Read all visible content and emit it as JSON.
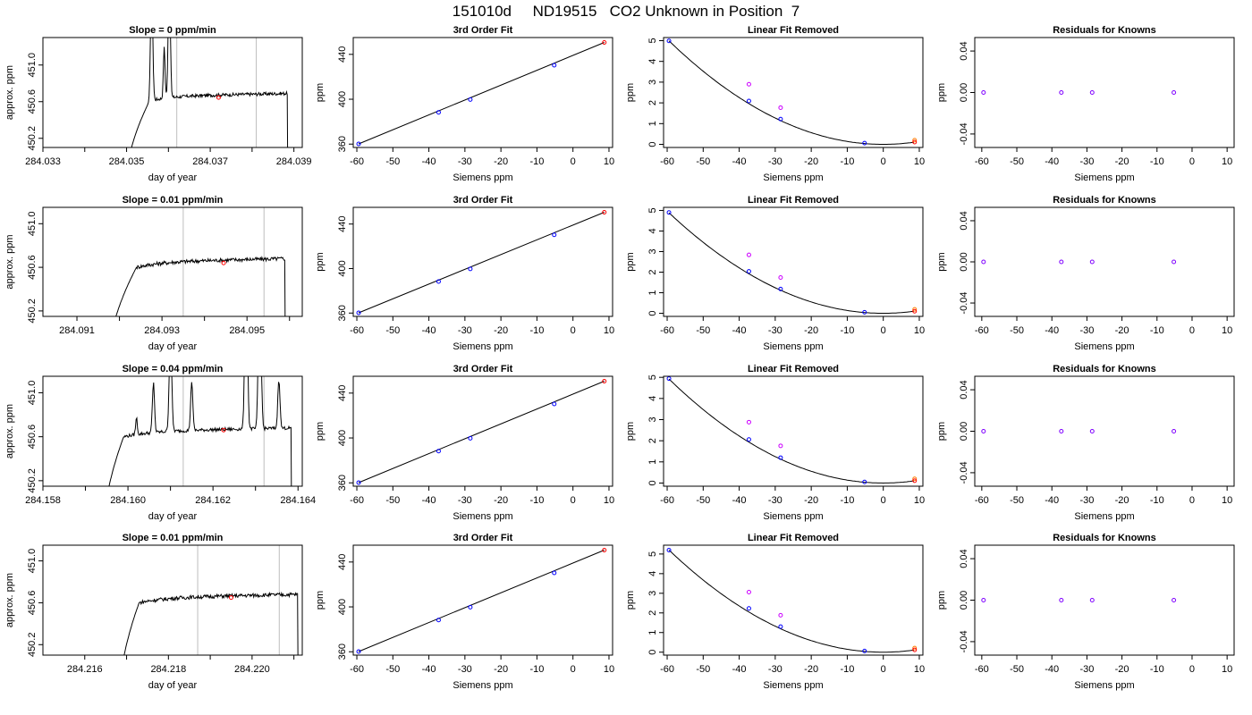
{
  "page": {
    "title": "151010d     ND19515   CO2 Unknown in Position  7"
  },
  "colors": {
    "line": "#000000",
    "frame": "#000000",
    "vline": "#bebebe",
    "known_point": "#0000ff",
    "unknown_point": "#ff0000",
    "unknown_point_alt": "#ff7f00",
    "raw_point": "#cc00ff",
    "residual_point": "#7f00ff"
  },
  "chart_data": [
    {
      "type": "line",
      "row": 1,
      "panel": "timeseries",
      "title": "Slope =  0  ppm/min",
      "xlabel": "day of year",
      "ylabel": "approx. ppm",
      "xlim": [
        284.033,
        284.0392
      ],
      "ylim": [
        450.1,
        451.3
      ],
      "xticks": [
        "284.033",
        "284.035",
        "284.037",
        "284.039"
      ],
      "xtick_values": [
        284.033,
        284.035,
        284.037,
        284.039
      ],
      "xminor": [
        284.034,
        284.036,
        284.038
      ],
      "yticks": [
        "450.2",
        "450.6",
        "451.0"
      ],
      "ytick_values": [
        450.2,
        450.6,
        451.0
      ],
      "vlines": [
        284.0362,
        284.0381
      ],
      "marker": {
        "x": 284.0372,
        "y": 450.645
      },
      "profile": {
        "start": 284.03495,
        "rise_end": 284.03555,
        "end": 284.03885,
        "level": 450.66,
        "noise": 0.018,
        "spikes": [
          {
            "x": 284.0356,
            "height": 1.4,
            "width": 5e-05
          },
          {
            "x": 284.0359,
            "height": 0.55,
            "width": 4e-05
          },
          {
            "x": 284.03602,
            "height": 1.4,
            "width": 5e-05
          }
        ]
      }
    },
    {
      "type": "line",
      "row": 2,
      "panel": "timeseries",
      "title": "Slope =  0.01  ppm/min",
      "xlabel": "day of year",
      "ylabel": "approx. ppm",
      "xlim": [
        284.0902,
        284.0963
      ],
      "ylim": [
        450.15,
        451.15
      ],
      "xticks": [
        "284.091",
        "284.093",
        "284.095"
      ],
      "xtick_values": [
        284.091,
        284.093,
        284.095
      ],
      "xminor": [
        284.092,
        284.094,
        284.096
      ],
      "yticks": [
        "450.2",
        "450.6",
        "451.0"
      ],
      "ytick_values": [
        450.2,
        450.6,
        451.0
      ],
      "vlines": [
        284.0935,
        284.0954
      ],
      "marker": {
        "x": 284.09445,
        "y": 450.64
      },
      "profile": {
        "start": 284.0917,
        "rise_end": 284.0924,
        "end": 284.0959,
        "level": 450.65,
        "noise": 0.018,
        "spikes": []
      }
    },
    {
      "type": "line",
      "row": 3,
      "panel": "timeseries",
      "title": "Slope =  0.04  ppm/min",
      "xlabel": "day of year",
      "ylabel": "approx. ppm",
      "xlim": [
        284.158,
        284.1641
      ],
      "ylim": [
        450.15,
        451.15
      ],
      "xticks": [
        "284.158",
        "284.160",
        "284.162",
        "284.164"
      ],
      "xtick_values": [
        284.158,
        284.16,
        284.162,
        284.164
      ],
      "xminor": [
        284.159,
        284.161,
        284.163
      ],
      "yticks": [
        "450.2",
        "450.6",
        "451.0"
      ],
      "ytick_values": [
        450.2,
        450.6,
        451.0
      ],
      "vlines": [
        284.1613,
        284.1632
      ],
      "marker": {
        "x": 284.16225,
        "y": 450.66
      },
      "profile": {
        "start": 284.1594,
        "rise_end": 284.1599,
        "end": 284.16385,
        "level": 450.65,
        "noise": 0.015,
        "spikes": [
          {
            "x": 284.1602,
            "height": 0.15,
            "width": 4e-05
          },
          {
            "x": 284.1606,
            "height": 0.45,
            "width": 5e-05
          },
          {
            "x": 284.161,
            "height": 0.85,
            "width": 6e-05
          },
          {
            "x": 284.1615,
            "height": 0.45,
            "width": 5e-05
          },
          {
            "x": 284.16278,
            "height": 1.6,
            "width": 6e-05
          },
          {
            "x": 284.1631,
            "height": 1.6,
            "width": 6e-05
          },
          {
            "x": 284.16355,
            "height": 0.45,
            "width": 5e-05
          }
        ]
      }
    },
    {
      "type": "line",
      "row": 4,
      "panel": "timeseries",
      "title": "Slope =  0.01  ppm/min",
      "xlabel": "day of year",
      "ylabel": "approx. ppm",
      "xlim": [
        284.215,
        284.2212
      ],
      "ylim": [
        450.1,
        451.15
      ],
      "xticks": [
        "284.216",
        "284.218",
        "284.220"
      ],
      "xtick_values": [
        284.216,
        284.218,
        284.22
      ],
      "xminor": [
        284.217,
        284.219,
        284.221
      ],
      "yticks": [
        "450.2",
        "450.6",
        "451.0"
      ],
      "ytick_values": [
        450.2,
        450.6,
        451.0
      ],
      "vlines": [
        284.2187,
        284.22065
      ],
      "marker": {
        "x": 284.2195,
        "y": 450.65
      },
      "profile": {
        "start": 284.2168,
        "rise_end": 284.2173,
        "end": 284.2211,
        "level": 450.65,
        "noise": 0.018,
        "spikes": []
      }
    },
    {
      "type": "scatter",
      "row": 1,
      "panel": "fit3",
      "title": "3rd Order Fit",
      "xlabel": "Siemens ppm",
      "ylabel": "ppm",
      "xlim": [
        -61,
        11
      ],
      "ylim": [
        357,
        455
      ],
      "xticks": [
        "-60",
        "-50",
        "-40",
        "-30",
        "-20",
        "-10",
        "0",
        "10"
      ],
      "xtick_values": [
        -60,
        -50,
        -40,
        -30,
        -20,
        -10,
        0,
        10
      ],
      "yticks": [
        "360",
        "400",
        "440"
      ],
      "ytick_values": [
        360,
        400,
        440
      ],
      "line": [
        [
          -59.5,
          360.2
        ],
        [
          8.7,
          450.6
        ]
      ],
      "known": [
        [
          -59.5,
          360.2
        ],
        [
          -37.3,
          388.3
        ],
        [
          -28.5,
          399.7
        ],
        [
          -5.2,
          430.3
        ]
      ],
      "unknown": [
        [
          8.7,
          450.6
        ]
      ]
    },
    {
      "type": "scatter",
      "row": 2,
      "panel": "fit3",
      "title": "3rd Order Fit",
      "xlabel": "Siemens ppm",
      "ylabel": "ppm",
      "xlim": [
        -61,
        11
      ],
      "ylim": [
        357,
        455
      ],
      "xticks": [
        "-60",
        "-50",
        "-40",
        "-30",
        "-20",
        "-10",
        "0",
        "10"
      ],
      "xtick_values": [
        -60,
        -50,
        -40,
        -30,
        -20,
        -10,
        0,
        10
      ],
      "yticks": [
        "360",
        "400",
        "440"
      ],
      "ytick_values": [
        360,
        400,
        440
      ],
      "line": [
        [
          -59.5,
          360.2
        ],
        [
          8.7,
          450.6
        ]
      ],
      "known": [
        [
          -59.5,
          360.2
        ],
        [
          -37.3,
          388.3
        ],
        [
          -28.5,
          399.7
        ],
        [
          -5.2,
          430.3
        ]
      ],
      "unknown": [
        [
          8.7,
          450.6
        ]
      ]
    },
    {
      "type": "scatter",
      "row": 3,
      "panel": "fit3",
      "title": "3rd Order Fit",
      "xlabel": "Siemens ppm",
      "ylabel": "ppm",
      "xlim": [
        -61,
        11
      ],
      "ylim": [
        357,
        455
      ],
      "xticks": [
        "-60",
        "-50",
        "-40",
        "-30",
        "-20",
        "-10",
        "0",
        "10"
      ],
      "xtick_values": [
        -60,
        -50,
        -40,
        -30,
        -20,
        -10,
        0,
        10
      ],
      "yticks": [
        "360",
        "400",
        "440"
      ],
      "ytick_values": [
        360,
        400,
        440
      ],
      "line": [
        [
          -59.5,
          360.2
        ],
        [
          8.7,
          450.6
        ]
      ],
      "known": [
        [
          -59.5,
          360.2
        ],
        [
          -37.3,
          388.3
        ],
        [
          -28.5,
          399.7
        ],
        [
          -5.2,
          430.3
        ]
      ],
      "unknown": [
        [
          8.7,
          450.6
        ]
      ]
    },
    {
      "type": "scatter",
      "row": 4,
      "panel": "fit3",
      "title": "3rd Order Fit",
      "xlabel": "Siemens ppm",
      "ylabel": "ppm",
      "xlim": [
        -61,
        11
      ],
      "ylim": [
        357,
        455
      ],
      "xticks": [
        "-60",
        "-50",
        "-40",
        "-30",
        "-20",
        "-10",
        "0",
        "10"
      ],
      "xtick_values": [
        -60,
        -50,
        -40,
        -30,
        -20,
        -10,
        0,
        10
      ],
      "yticks": [
        "360",
        "400",
        "440"
      ],
      "ytick_values": [
        360,
        400,
        440
      ],
      "line": [
        [
          -59.5,
          360.2
        ],
        [
          8.7,
          450.6
        ]
      ],
      "known": [
        [
          -59.5,
          360.2
        ],
        [
          -37.3,
          388.3
        ],
        [
          -28.5,
          399.7
        ],
        [
          -5.2,
          430.3
        ]
      ],
      "unknown": [
        [
          8.7,
          450.6
        ]
      ]
    },
    {
      "type": "scatter",
      "row": 1,
      "panel": "linrem",
      "title": "Linear Fit Removed",
      "xlabel": "Siemens ppm",
      "ylabel": "ppm",
      "xlim": [
        -61,
        11
      ],
      "ylim": [
        -0.15,
        5.15
      ],
      "xticks": [
        "-60",
        "-50",
        "-40",
        "-30",
        "-20",
        "-10",
        "0",
        "10"
      ],
      "xtick_values": [
        -60,
        -50,
        -40,
        -30,
        -20,
        -10,
        0,
        10
      ],
      "yticks": [
        "0",
        "1",
        "2",
        "3",
        "4",
        "5"
      ],
      "ytick_values": [
        0,
        1,
        2,
        3,
        4,
        5
      ],
      "curve": {
        "a": 0.00141,
        "h": 0.0,
        "k": 0.0
      },
      "known": [
        [
          -59.5,
          4.99
        ],
        [
          -37.3,
          2.09
        ],
        [
          -28.5,
          1.22
        ],
        [
          -5.2,
          0.06
        ]
      ],
      "raw": [
        [
          -37.3,
          2.9
        ],
        [
          -28.5,
          1.77
        ]
      ],
      "unknown": [
        [
          8.7,
          0.11
        ]
      ],
      "unknown_alt": [
        [
          8.7,
          0.2
        ]
      ]
    },
    {
      "type": "scatter",
      "row": 2,
      "panel": "linrem",
      "title": "Linear Fit Removed",
      "xlabel": "Siemens ppm",
      "ylabel": "ppm",
      "xlim": [
        -61,
        11
      ],
      "ylim": [
        -0.15,
        5.15
      ],
      "xticks": [
        "-60",
        "-50",
        "-40",
        "-30",
        "-20",
        "-10",
        "0",
        "10"
      ],
      "xtick_values": [
        -60,
        -50,
        -40,
        -30,
        -20,
        -10,
        0,
        10
      ],
      "yticks": [
        "0",
        "1",
        "2",
        "3",
        "4",
        "5"
      ],
      "ytick_values": [
        0,
        1,
        2,
        3,
        4,
        5
      ],
      "curve": {
        "a": 0.00138,
        "h": 0.0,
        "k": 0.0
      },
      "known": [
        [
          -59.5,
          4.9
        ],
        [
          -37.3,
          2.04
        ],
        [
          -28.5,
          1.18
        ],
        [
          -5.2,
          0.05
        ]
      ],
      "raw": [
        [
          -37.3,
          2.84
        ],
        [
          -28.5,
          1.74
        ]
      ],
      "unknown": [
        [
          8.7,
          0.1
        ]
      ],
      "unknown_alt": [
        [
          8.7,
          0.19
        ]
      ]
    },
    {
      "type": "scatter",
      "row": 3,
      "panel": "linrem",
      "title": "Linear Fit Removed",
      "xlabel": "Siemens ppm",
      "ylabel": "ppm",
      "xlim": [
        -61,
        11
      ],
      "ylim": [
        -0.15,
        5.05
      ],
      "xticks": [
        "-60",
        "-50",
        "-40",
        "-30",
        "-20",
        "-10",
        "0",
        "10"
      ],
      "xtick_values": [
        -60,
        -50,
        -40,
        -30,
        -20,
        -10,
        0,
        10
      ],
      "yticks": [
        "0",
        "1",
        "2",
        "3",
        "4",
        "5"
      ],
      "ytick_values": [
        0,
        1,
        2,
        3,
        4,
        5
      ],
      "curve": {
        "a": 0.00139,
        "h": 0.0,
        "k": 0.0
      },
      "known": [
        [
          -59.5,
          4.94
        ],
        [
          -37.3,
          2.06
        ],
        [
          -28.5,
          1.2
        ],
        [
          -5.2,
          0.05
        ]
      ],
      "raw": [
        [
          -37.3,
          2.88
        ],
        [
          -28.5,
          1.76
        ]
      ],
      "unknown": [
        [
          8.7,
          0.11
        ]
      ],
      "unknown_alt": [
        [
          8.7,
          0.2
        ]
      ]
    },
    {
      "type": "scatter",
      "row": 4,
      "panel": "linrem",
      "title": "Linear Fit Removed",
      "xlabel": "Siemens ppm",
      "ylabel": "ppm",
      "xlim": [
        -61,
        11
      ],
      "ylim": [
        -0.15,
        5.45
      ],
      "xticks": [
        "-60",
        "-50",
        "-40",
        "-30",
        "-20",
        "-10",
        "0",
        "10"
      ],
      "xtick_values": [
        -60,
        -50,
        -40,
        -30,
        -20,
        -10,
        0,
        10
      ],
      "yticks": [
        "0",
        "1",
        "2",
        "3",
        "4",
        "5"
      ],
      "ytick_values": [
        0,
        1,
        2,
        3,
        4,
        5
      ],
      "curve": {
        "a": 0.00147,
        "h": 0.0,
        "k": 0.0
      },
      "known": [
        [
          -59.5,
          5.2
        ],
        [
          -37.3,
          2.23
        ],
        [
          -28.5,
          1.3
        ],
        [
          -5.2,
          0.06
        ]
      ],
      "raw": [
        [
          -37.3,
          3.06
        ],
        [
          -28.5,
          1.88
        ]
      ],
      "unknown": [
        [
          8.7,
          0.12
        ]
      ],
      "unknown_alt": [
        [
          8.7,
          0.21
        ]
      ]
    },
    {
      "type": "scatter",
      "row": 1,
      "panel": "resid",
      "title": "Residuals for Knowns",
      "xlabel": "Siemens ppm",
      "ylabel": "ppm",
      "xlim": [
        -62,
        12
      ],
      "ylim": [
        -0.053,
        0.053
      ],
      "xticks": [
        "-60",
        "-50",
        "-40",
        "-30",
        "-20",
        "-10",
        "0",
        "10"
      ],
      "xtick_values": [
        -60,
        -50,
        -40,
        -30,
        -20,
        -10,
        0,
        10
      ],
      "yticks": [
        "-0.04",
        "0.00",
        "0.04"
      ],
      "ytick_values": [
        -0.04,
        0.0,
        0.04
      ],
      "points": [
        [
          -59.5,
          0
        ],
        [
          -37.3,
          0
        ],
        [
          -28.5,
          0
        ],
        [
          -5.2,
          0
        ]
      ]
    },
    {
      "type": "scatter",
      "row": 2,
      "panel": "resid",
      "title": "Residuals for Knowns",
      "xlabel": "Siemens ppm",
      "ylabel": "ppm",
      "xlim": [
        -62,
        12
      ],
      "ylim": [
        -0.053,
        0.053
      ],
      "xticks": [
        "-60",
        "-50",
        "-40",
        "-30",
        "-20",
        "-10",
        "0",
        "10"
      ],
      "xtick_values": [
        -60,
        -50,
        -40,
        -30,
        -20,
        -10,
        0,
        10
      ],
      "yticks": [
        "-0.04",
        "0.00",
        "0.04"
      ],
      "ytick_values": [
        -0.04,
        0.0,
        0.04
      ],
      "points": [
        [
          -59.5,
          0
        ],
        [
          -37.3,
          0
        ],
        [
          -28.5,
          0
        ],
        [
          -5.2,
          0
        ]
      ]
    },
    {
      "type": "scatter",
      "row": 3,
      "panel": "resid",
      "title": "Residuals for Knowns",
      "xlabel": "Siemens ppm",
      "ylabel": "ppm",
      "xlim": [
        -62,
        12
      ],
      "ylim": [
        -0.053,
        0.053
      ],
      "xticks": [
        "-60",
        "-50",
        "-40",
        "-30",
        "-20",
        "-10",
        "0",
        "10"
      ],
      "xtick_values": [
        -60,
        -50,
        -40,
        -30,
        -20,
        -10,
        0,
        10
      ],
      "yticks": [
        "-0.04",
        "0.00",
        "0.04"
      ],
      "ytick_values": [
        -0.04,
        0.0,
        0.04
      ],
      "points": [
        [
          -59.5,
          0
        ],
        [
          -37.3,
          0
        ],
        [
          -28.5,
          0
        ],
        [
          -5.2,
          0
        ]
      ]
    },
    {
      "type": "scatter",
      "row": 4,
      "panel": "resid",
      "title": "Residuals for Knowns",
      "xlabel": "Siemens ppm",
      "ylabel": "ppm",
      "xlim": [
        -62,
        12
      ],
      "ylim": [
        -0.053,
        0.053
      ],
      "xticks": [
        "-60",
        "-50",
        "-40",
        "-30",
        "-20",
        "-10",
        "0",
        "10"
      ],
      "xtick_values": [
        -60,
        -50,
        -40,
        -30,
        -20,
        -10,
        0,
        10
      ],
      "yticks": [
        "-0.04",
        "0.00",
        "0.04"
      ],
      "ytick_values": [
        -0.04,
        0.0,
        0.04
      ],
      "points": [
        [
          -59.5,
          0
        ],
        [
          -37.3,
          0
        ],
        [
          -28.5,
          0
        ],
        [
          -5.2,
          0
        ]
      ]
    }
  ]
}
